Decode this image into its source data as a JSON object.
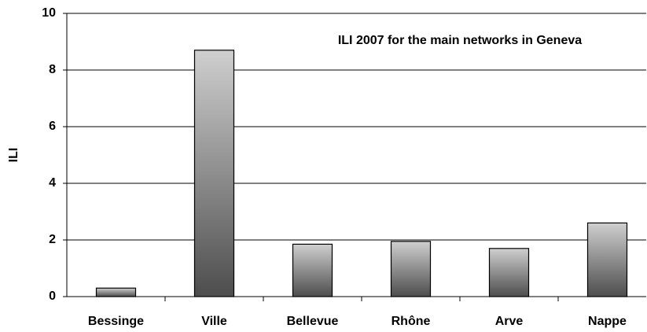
{
  "chart_data": {
    "type": "bar",
    "title": "ILI 2007 for the main networks in Geneva",
    "y_label": "ILI",
    "categories": [
      "Bessinge",
      "Ville",
      "Bellevue",
      "Rhône",
      "Arve",
      "Nappe"
    ],
    "values": [
      0.3,
      8.7,
      1.85,
      1.95,
      1.7,
      2.6
    ],
    "ylim": [
      0,
      10
    ],
    "yticks": [
      0,
      2,
      4,
      6,
      8,
      10
    ],
    "grid": true
  }
}
